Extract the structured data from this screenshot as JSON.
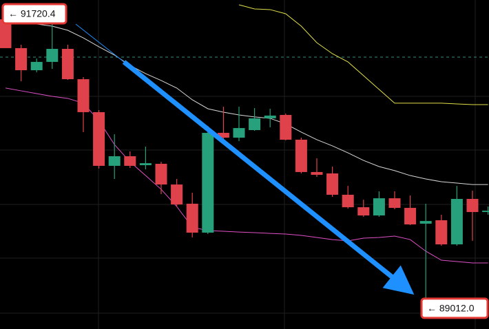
{
  "chart_data": {
    "type": "candlestick",
    "ylim": [
      88766,
      91849
    ],
    "up_color": "#26a17b",
    "down_color": "#e0424b",
    "open": [
      91668,
      91398,
      91191,
      91269,
      91391,
      91107,
      90798,
      90295,
      90385,
      90301,
      90314,
      90120,
      89940,
      89669,
      90604,
      90559,
      90630,
      90740,
      90772,
      90540,
      90237,
      90224,
      90024,
      89907,
      89830,
      89991,
      89901,
      89753,
      89785,
      89559,
      89985,
      89862
    ],
    "high": [
      91720.4,
      91430,
      91301,
      91623,
      91430,
      91127,
      90817,
      90591,
      90430,
      90475,
      90333,
      90172,
      90043,
      90669,
      90849,
      90849,
      90836,
      90830,
      90785,
      90559,
      90366,
      90288,
      90107,
      89978,
      90056,
      90056,
      90017,
      89940,
      89837,
      90107,
      90062,
      89914
    ],
    "low": [
      91398,
      91088,
      91172,
      91204,
      91101,
      90611,
      90269,
      90172,
      90275,
      90262,
      90030,
      89914,
      89624,
      89656,
      90527,
      90527,
      90623,
      90656,
      90533,
      90224,
      90191,
      90004,
      89894,
      89817,
      89817,
      89888,
      89740,
      89012.0,
      89546,
      89546,
      89592,
      89837
    ],
    "close": [
      91398,
      91191,
      91269,
      91391,
      91107,
      90798,
      90295,
      90385,
      90295,
      90320,
      90120,
      89933,
      89669,
      90604,
      90559,
      90649,
      90740,
      90766,
      90540,
      90237,
      90211,
      90024,
      89907,
      89830,
      89991,
      89901,
      89746,
      89778,
      89559,
      89985,
      89862,
      89875
    ],
    "lines": [
      {
        "color": "#e3e04a",
        "values": [
          null,
          null,
          null,
          null,
          null,
          null,
          null,
          null,
          null,
          null,
          null,
          null,
          null,
          null,
          null,
          91804,
          91765,
          91759,
          91720,
          91604,
          91449,
          91346,
          91269,
          91140,
          91011,
          90882,
          90882,
          90882,
          90882,
          90875,
          90869,
          90869
        ]
      },
      {
        "color": "#d8d8d8",
        "values": [
          91662,
          91643,
          91624,
          91604,
          91565,
          91494,
          91411,
          91333,
          91237,
          91159,
          91095,
          91024,
          90914,
          90830,
          90798,
          90772,
          90753,
          90740,
          90688,
          90611,
          90540,
          90482,
          90417,
          90346,
          90288,
          90250,
          90204,
          90172,
          90146,
          90133,
          90120,
          90120
        ]
      },
      {
        "color": "#e050c8",
        "values": [
          91024,
          90998,
          90972,
          90946,
          90927,
          90882,
          90720,
          90494,
          90333,
          90204,
          90075,
          89914,
          89720,
          89688,
          89682,
          89675,
          89669,
          89662,
          89656,
          89643,
          89624,
          89604,
          89592,
          89617,
          89624,
          89637,
          89604,
          89495,
          89411,
          89398,
          89385,
          89385
        ]
      }
    ],
    "reference_line": {
      "value": 91314,
      "color": "#3a8f7a"
    },
    "annotations": [
      {
        "text": "← 91720.4",
        "value": 91720.4
      },
      {
        "text": "← 89012.0",
        "value": 89012.0
      }
    ]
  }
}
